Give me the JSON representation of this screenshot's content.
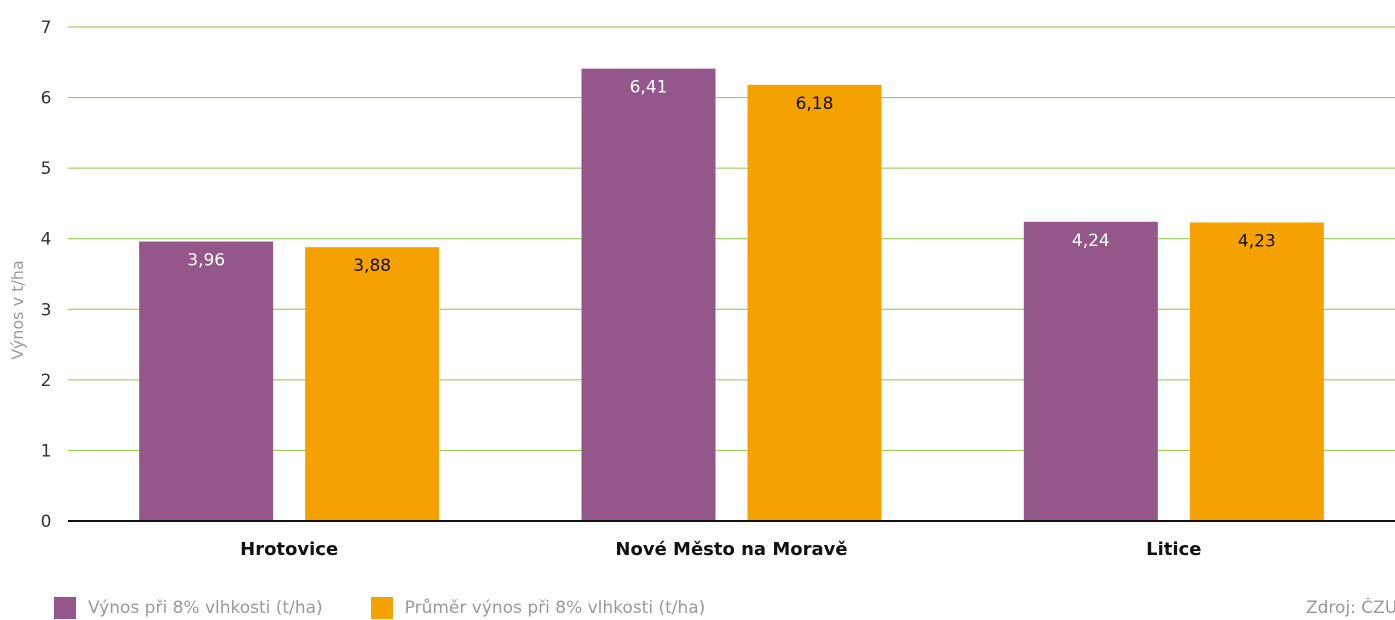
{
  "chart_data": {
    "type": "bar",
    "categories": [
      "Hrotovice",
      "Nové Město na Moravě",
      "Litice"
    ],
    "series": [
      {
        "name": "Výnos při 8% vlhkosti (t/ha)",
        "values": [
          3.96,
          6.41,
          4.24
        ],
        "labels": [
          "3,96",
          "6,41",
          "4,24"
        ],
        "color": "#93578a",
        "label_color": "#ffffff"
      },
      {
        "name": "Průměr výnos při 8% vlhkosti (t/ha)",
        "values": [
          3.88,
          6.18,
          4.23
        ],
        "labels": [
          "3,88",
          "6,18",
          "4,23"
        ],
        "color": "#f5a200",
        "label_color": "#111111"
      }
    ],
    "ylabel": "Výnos v t/ha",
    "ylim": [
      0,
      7
    ],
    "yticks": [
      "0",
      "1",
      "2",
      "3",
      "4",
      "5",
      "6",
      "7"
    ],
    "grid": true,
    "grid_color": "#8dc63f",
    "legend_position": "bottom-left"
  },
  "source": "Zdroj: ČZU"
}
